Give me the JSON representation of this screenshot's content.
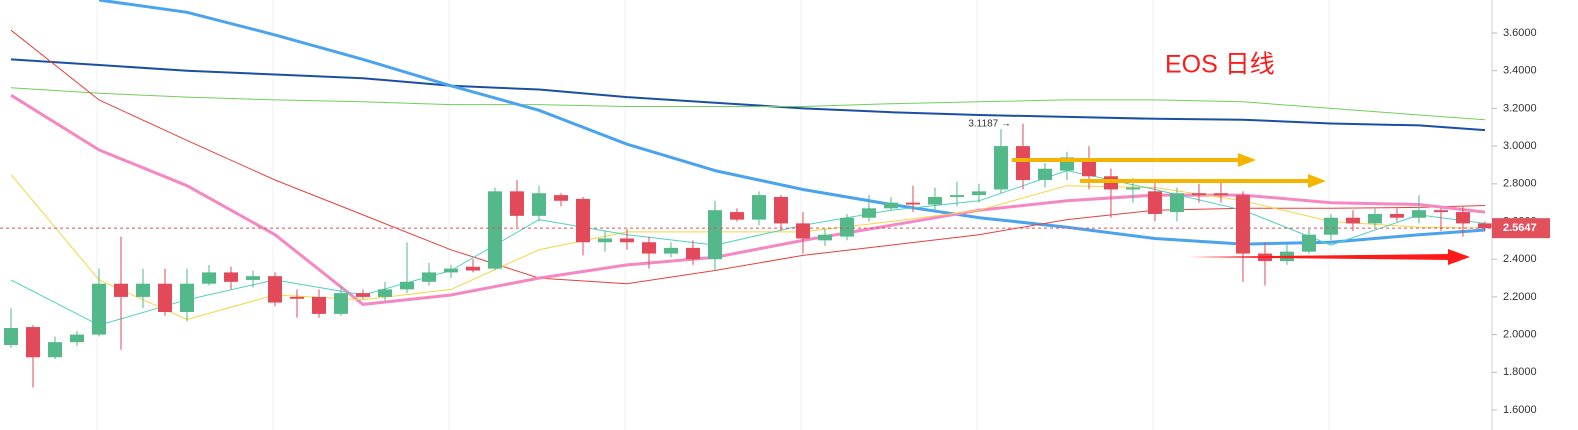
{
  "chart_data": {
    "type": "candlestick",
    "title": "EOS 日线",
    "title_color": "#ff1a1a",
    "annotation": "3.1187 →",
    "last_price": 2.5647,
    "last_price_color": "#e2505c",
    "up_color": "#53b88a",
    "down_color": "#e24a5a",
    "xlim": [
      -0.5,
      67.32
    ],
    "ylim": [
      1.494,
      3.775
    ],
    "yticks": [
      {
        "value": 1.6,
        "label": "1.6000"
      },
      {
        "value": 1.8,
        "label": "1.8000"
      },
      {
        "value": 2.0,
        "label": "2.0000"
      },
      {
        "value": 2.2,
        "label": "2.2000"
      },
      {
        "value": 2.4,
        "label": "2.4000"
      },
      {
        "value": 2.6,
        "label": "2.6000"
      },
      {
        "value": 2.8,
        "label": "2.8000"
      },
      {
        "value": 3.0,
        "label": "3.0000"
      },
      {
        "value": 3.2,
        "label": "3.2000"
      },
      {
        "value": 3.4,
        "label": "3.4000"
      },
      {
        "value": 3.6,
        "label": "3.6000"
      }
    ],
    "open": [
      1.945,
      2.04,
      1.88,
      1.96,
      2.0,
      2.27,
      2.2,
      2.27,
      2.12,
      2.27,
      2.33,
      2.29,
      2.31,
      2.2,
      2.2,
      2.11,
      2.22,
      2.2,
      2.24,
      2.28,
      2.33,
      2.36,
      2.35,
      2.76,
      2.63,
      2.74,
      2.72,
      2.49,
      2.51,
      2.49,
      2.43,
      2.46,
      2.4,
      2.65,
      2.61,
      2.73,
      2.59,
      2.5,
      2.52,
      2.62,
      2.67,
      2.7,
      2.69,
      2.73,
      2.74,
      2.77,
      3.0,
      2.82,
      2.87,
      2.93,
      2.84,
      2.77,
      2.76,
      2.65,
      2.75,
      2.75,
      2.74,
      2.43,
      2.39,
      2.44,
      2.53,
      2.62,
      2.59,
      2.64,
      2.62,
      2.66,
      2.65,
      2.59
    ],
    "high": [
      2.14,
      2.05,
      1.99,
      2.02,
      2.35,
      2.52,
      2.35,
      2.35,
      2.35,
      2.37,
      2.36,
      2.34,
      2.33,
      2.24,
      2.24,
      2.26,
      2.24,
      2.28,
      2.49,
      2.38,
      2.37,
      2.4,
      2.78,
      2.82,
      2.79,
      2.75,
      2.73,
      2.55,
      2.56,
      2.52,
      2.49,
      2.5,
      2.71,
      2.67,
      2.76,
      2.74,
      2.65,
      2.56,
      2.64,
      2.74,
      2.73,
      2.79,
      2.78,
      2.81,
      2.8,
      3.09,
      3.1187,
      2.91,
      2.97,
      3.0,
      2.88,
      2.83,
      2.81,
      2.78,
      2.8,
      2.82,
      2.76,
      2.49,
      2.48,
      2.56,
      2.64,
      2.66,
      2.67,
      2.67,
      2.74,
      2.67,
      2.68,
      2.6
    ],
    "low": [
      1.93,
      1.72,
      1.87,
      1.94,
      1.99,
      1.92,
      2.14,
      2.1,
      2.07,
      2.26,
      2.24,
      2.25,
      2.15,
      2.09,
      2.09,
      2.1,
      2.19,
      2.18,
      2.22,
      2.26,
      2.3,
      2.33,
      2.34,
      2.57,
      2.6,
      2.68,
      2.42,
      2.44,
      2.45,
      2.35,
      2.41,
      2.37,
      2.34,
      2.6,
      2.58,
      2.55,
      2.43,
      2.47,
      2.5,
      2.6,
      2.66,
      2.65,
      2.66,
      2.68,
      2.7,
      2.75,
      2.77,
      2.78,
      2.82,
      2.77,
      2.62,
      2.7,
      2.6,
      2.6,
      2.7,
      2.7,
      2.28,
      2.26,
      2.37,
      2.43,
      2.5,
      2.55,
      2.57,
      2.6,
      2.59,
      2.55,
      2.52,
      2.55
    ],
    "close": [
      2.035,
      1.88,
      1.96,
      2.0,
      2.27,
      2.2,
      2.27,
      2.12,
      2.27,
      2.33,
      2.28,
      2.31,
      2.17,
      2.19,
      2.11,
      2.22,
      2.2,
      2.24,
      2.28,
      2.33,
      2.35,
      2.34,
      2.76,
      2.63,
      2.75,
      2.71,
      2.49,
      2.51,
      2.49,
      2.43,
      2.46,
      2.4,
      2.66,
      2.61,
      2.74,
      2.59,
      2.51,
      2.53,
      2.62,
      2.67,
      2.7,
      2.69,
      2.73,
      2.74,
      2.76,
      3.0,
      2.82,
      2.88,
      2.94,
      2.84,
      2.77,
      2.78,
      2.64,
      2.75,
      2.74,
      2.74,
      2.43,
      2.39,
      2.44,
      2.53,
      2.62,
      2.59,
      2.64,
      2.62,
      2.66,
      2.65,
      2.59,
      2.5647
    ],
    "series": [
      {
        "color": "#1b4fa3",
        "line_width": 2,
        "x": [
          0,
          4,
          8,
          12,
          16,
          20,
          24,
          28,
          32,
          36,
          40,
          44,
          48,
          52,
          56,
          60,
          64,
          67
        ],
        "values": [
          3.46,
          3.43,
          3.4,
          3.38,
          3.36,
          3.32,
          3.3,
          3.26,
          3.23,
          3.2,
          3.18,
          3.165,
          3.155,
          3.145,
          3.14,
          3.12,
          3.11,
          3.085
        ]
      },
      {
        "color": "#72cf5c",
        "line_width": 1,
        "x": [
          0,
          4,
          8,
          12,
          16,
          20,
          24,
          28,
          32,
          36,
          40,
          44,
          48,
          52,
          56,
          60,
          64,
          67
        ],
        "values": [
          3.31,
          3.28,
          3.26,
          3.245,
          3.235,
          3.22,
          3.22,
          3.21,
          3.21,
          3.21,
          3.225,
          3.235,
          3.245,
          3.245,
          3.235,
          3.2,
          3.165,
          3.14
        ]
      },
      {
        "color": "#4aa3ef",
        "line_width": 3,
        "x": [
          0,
          4,
          8,
          12,
          16,
          20,
          24,
          28,
          32,
          36,
          40,
          44,
          48,
          52,
          56,
          60,
          64,
          67
        ],
        "values": [
          null,
          3.775,
          3.71,
          3.59,
          3.46,
          3.32,
          3.19,
          3.01,
          2.87,
          2.77,
          2.69,
          2.62,
          2.57,
          2.51,
          2.48,
          2.49,
          2.53,
          2.555
        ]
      },
      {
        "color": "#e8413a",
        "line_width": 1,
        "x": [
          0,
          4,
          8,
          12,
          16,
          20,
          24,
          28,
          32,
          36,
          40,
          44,
          48,
          52,
          56,
          60,
          64,
          67
        ],
        "values": [
          3.615,
          3.245,
          3.03,
          2.82,
          2.635,
          2.45,
          2.3,
          2.27,
          2.34,
          2.42,
          2.475,
          2.53,
          2.61,
          2.66,
          2.67,
          2.67,
          2.675,
          2.685
        ]
      },
      {
        "color": "#f587c3",
        "line_width": 3,
        "x": [
          0,
          4,
          8,
          12,
          16,
          20,
          24,
          28,
          32,
          36,
          40,
          44,
          48,
          52,
          56,
          60,
          64,
          67
        ],
        "values": [
          3.27,
          2.98,
          2.79,
          2.53,
          2.16,
          2.21,
          2.3,
          2.37,
          2.41,
          2.5,
          2.58,
          2.66,
          2.71,
          2.74,
          2.74,
          2.7,
          2.69,
          2.65
        ]
      },
      {
        "color": "#f5d542",
        "line_width": 1,
        "x": [
          0,
          4,
          8,
          12,
          16,
          20,
          24,
          28,
          32,
          36,
          40,
          44,
          48,
          52,
          56,
          60,
          64,
          67
        ],
        "values": [
          2.85,
          2.29,
          2.08,
          2.21,
          2.185,
          2.24,
          2.45,
          2.545,
          2.545,
          2.545,
          2.6,
          2.66,
          2.79,
          2.78,
          2.71,
          2.6,
          2.57,
          2.565
        ]
      },
      {
        "color": "#4fd2c0",
        "line_width": 1,
        "x": [
          0,
          4,
          8,
          12,
          16,
          20,
          24,
          28,
          32,
          36,
          40,
          44,
          48,
          52,
          56,
          60,
          64,
          67
        ],
        "values": [
          2.29,
          2.05,
          2.185,
          2.29,
          2.21,
          2.34,
          2.61,
          2.53,
          2.475,
          2.58,
          2.66,
          2.71,
          2.87,
          2.77,
          2.66,
          2.475,
          2.635,
          2.59
        ]
      }
    ]
  }
}
